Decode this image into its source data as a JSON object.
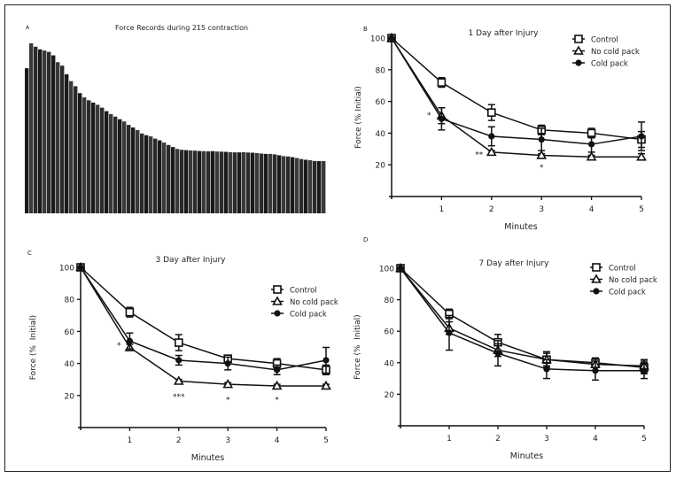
{
  "chart_data": [
    {
      "panel": "A",
      "type": "bar",
      "title": "Force Records during 215 contraction",
      "values": [
        84.5,
        99,
        97,
        95.5,
        94.8,
        94,
        92,
        88,
        86,
        81,
        77,
        74,
        70,
        67.5,
        65.8,
        64.5,
        63.2,
        61.5,
        59.5,
        57.8,
        56.3,
        54.8,
        53.5,
        51.5,
        50,
        48.5,
        46.5,
        45.5,
        44.8,
        43.5,
        42.5,
        41.2,
        39.8,
        38.6,
        37.5,
        37,
        36.8,
        36.6,
        36.5,
        36.3,
        36.2,
        36.1,
        36.2,
        36,
        35.9,
        35.8,
        35.6,
        35.5,
        35.5,
        35.6,
        35.4,
        35.3,
        35.1,
        34.8,
        34.6,
        34.6,
        34.3,
        33.8,
        33.3,
        33.1,
        32.7,
        32.2,
        31.6,
        31.2,
        30.9,
        30.5,
        30.4,
        30.4
      ],
      "color": "#2a2a2a"
    },
    {
      "panel": "B",
      "type": "line",
      "title": "1 Day after Injury",
      "xlabel": "Minutes",
      "ylabel": "Force (% Initial)",
      "xlim": [
        0,
        5
      ],
      "ylim": [
        0,
        100
      ],
      "x_ticks": [
        "1",
        "2",
        "3",
        "4",
        "5"
      ],
      "y_ticks": [
        "20",
        "40",
        "60",
        "80",
        "100"
      ],
      "x": [
        0,
        1,
        2,
        3,
        4,
        5
      ],
      "series": [
        {
          "name": "Control",
          "marker": "open-square",
          "values": [
            100,
            72,
            53,
            42,
            40,
            36
          ],
          "errors": [
            0,
            3,
            5,
            3,
            3,
            5
          ]
        },
        {
          "name": "No cold pack",
          "marker": "open-triangle",
          "values": [
            100,
            51,
            28,
            26,
            25,
            25
          ],
          "errors": [
            0,
            5,
            1,
            1,
            1,
            2
          ]
        },
        {
          "name": "Cold pack",
          "marker": "filled-circle",
          "values": [
            100,
            49,
            38,
            36,
            33,
            38
          ],
          "errors": [
            0,
            7,
            6,
            7,
            5,
            9
          ]
        }
      ],
      "annotations": [
        {
          "text": "*",
          "x": 0.75,
          "y": 52
        },
        {
          "text": "**",
          "x": 1.75,
          "y": 27
        },
        {
          "text": "*",
          "x": 3,
          "y": 19
        }
      ],
      "legend": "top-right"
    },
    {
      "panel": "C",
      "type": "line",
      "title": "3 Day after Injury",
      "xlabel": "Minutes",
      "ylabel": "Force (%  Initial)",
      "xlim": [
        0,
        5
      ],
      "ylim": [
        0,
        100
      ],
      "x_ticks": [
        "1",
        "2",
        "3",
        "4",
        "5"
      ],
      "y_ticks": [
        "20",
        "40",
        "60",
        "80",
        "100"
      ],
      "x": [
        0,
        1,
        2,
        3,
        4,
        5
      ],
      "series": [
        {
          "name": "Control",
          "marker": "open-square",
          "values": [
            100,
            72,
            53,
            43,
            40,
            36
          ],
          "errors": [
            0,
            3,
            5,
            2,
            3,
            3
          ]
        },
        {
          "name": "No cold pack",
          "marker": "open-triangle",
          "values": [
            100,
            50,
            29,
            27,
            26,
            26
          ],
          "errors": [
            0,
            2,
            1,
            1,
            1,
            1
          ]
        },
        {
          "name": "Cold pack",
          "marker": "filled-circle",
          "values": [
            100,
            54,
            42,
            40,
            36,
            42
          ],
          "errors": [
            0,
            5,
            3,
            4,
            3,
            8
          ]
        }
      ],
      "annotations": [
        {
          "text": "*",
          "x": 0.78,
          "y": 52
        },
        {
          "text": "***",
          "x": 2,
          "y": 20
        },
        {
          "text": "*",
          "x": 3,
          "y": 18
        },
        {
          "text": "*",
          "x": 4,
          "y": 18
        }
      ],
      "legend": "top-right"
    },
    {
      "panel": "D",
      "type": "line",
      "title": "7 Day after Injury",
      "xlabel": "Minutes",
      "ylabel": "Force (%  Initial)",
      "xlim": [
        0,
        5
      ],
      "ylim": [
        0,
        100
      ],
      "x_ticks": [
        "1",
        "2",
        "3",
        "4",
        "5"
      ],
      "y_ticks": [
        "20",
        "40",
        "60",
        "80",
        "100"
      ],
      "x": [
        0,
        1,
        2,
        3,
        4,
        5
      ],
      "series": [
        {
          "name": "Control",
          "marker": "open-square",
          "values": [
            100,
            71,
            53,
            42,
            40,
            37
          ],
          "errors": [
            0,
            3,
            5,
            4,
            3,
            4
          ]
        },
        {
          "name": "No cold pack",
          "marker": "open-triangle",
          "values": [
            100,
            62,
            48,
            42,
            39,
            38
          ],
          "errors": [
            0,
            4,
            4,
            5,
            4,
            4
          ]
        },
        {
          "name": "Cold pack",
          "marker": "filled-circle",
          "values": [
            100,
            59,
            46,
            36,
            35,
            35
          ],
          "errors": [
            0,
            11,
            8,
            6,
            6,
            5
          ]
        }
      ],
      "annotations": [],
      "legend": "top-right"
    }
  ]
}
